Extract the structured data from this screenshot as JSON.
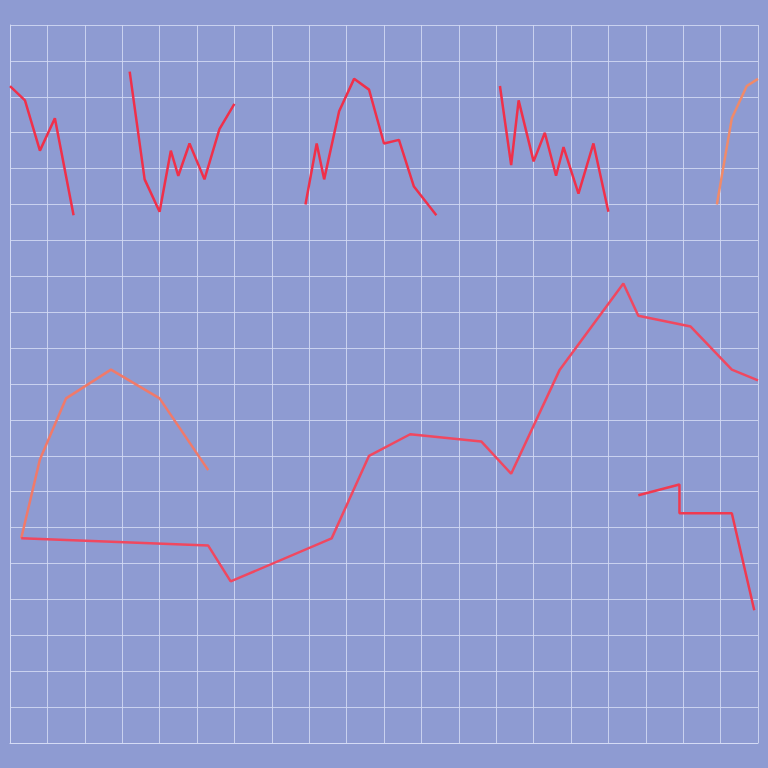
{
  "chart_data": {
    "type": "line",
    "grid": true,
    "tick_labels": false,
    "xlim": [
      0,
      20
    ],
    "ylim": [
      0,
      20
    ],
    "xticks": [
      0,
      1,
      2,
      3,
      4,
      5,
      6,
      7,
      8,
      9,
      10,
      11,
      12,
      13,
      14,
      15,
      16,
      17,
      18,
      19,
      20
    ],
    "yticks": [
      0,
      1,
      2,
      3,
      4,
      5,
      6,
      7,
      8,
      9,
      10,
      11,
      12,
      13,
      14,
      15,
      16,
      17,
      18,
      19,
      20
    ],
    "series": [
      {
        "color": "#f0304a",
        "x": [
          0,
          0.4,
          0.8,
          1.2,
          1.7
        ],
        "values": [
          18.3,
          17.9,
          16.5,
          17.4,
          14.7
        ]
      },
      {
        "color": "#f0304a",
        "x": [
          3.2,
          3.6,
          4.0,
          4.3,
          4.5,
          4.8,
          5.2,
          5.6,
          6.0
        ],
        "values": [
          18.7,
          15.7,
          14.8,
          16.5,
          15.8,
          16.7,
          15.7,
          17.1,
          17.8
        ]
      },
      {
        "color": "#f0304a",
        "x": [
          7.9,
          8.2,
          8.4,
          8.8,
          9.2,
          9.6,
          10.0,
          10.4,
          10.8,
          11.4
        ],
        "values": [
          15.0,
          16.7,
          15.7,
          17.6,
          18.5,
          18.2,
          16.7,
          16.8,
          15.5,
          14.7
        ]
      },
      {
        "color": "#f0304a",
        "x": [
          13.1,
          13.4,
          13.6,
          14.0,
          14.3,
          14.6,
          14.8,
          15.2,
          15.6,
          16.0
        ],
        "values": [
          18.3,
          16.1,
          17.9,
          16.2,
          17.0,
          15.8,
          16.6,
          15.3,
          16.7,
          14.8
        ]
      },
      {
        "color": "#f08a6a",
        "x": [
          18.9,
          19.3,
          19.7,
          20.0
        ],
        "values": [
          15.0,
          17.4,
          18.3,
          18.5
        ]
      },
      {
        "color": "#f07a6a",
        "x": [
          0.3,
          0.8,
          1.5,
          2.7,
          4.0,
          5.3
        ],
        "values": [
          5.7,
          7.9,
          9.6,
          10.4,
          9.6,
          7.6
        ]
      },
      {
        "color": "#f04860",
        "x": [
          0.3,
          5.3,
          5.9,
          8.6,
          9.6,
          10.7,
          12.6,
          13.4,
          14.7,
          16.4,
          16.8,
          18.2,
          19.3,
          20.0
        ],
        "values": [
          5.7,
          5.5,
          4.5,
          5.7,
          8.0,
          8.6,
          8.4,
          7.5,
          10.4,
          12.8,
          11.9,
          11.6,
          10.4,
          10.1
        ]
      },
      {
        "color": "#f03a50",
        "x": [
          16.8,
          17.9,
          17.9,
          19.3,
          19.9
        ],
        "values": [
          6.9,
          7.2,
          6.4,
          6.4,
          3.7
        ]
      }
    ]
  }
}
